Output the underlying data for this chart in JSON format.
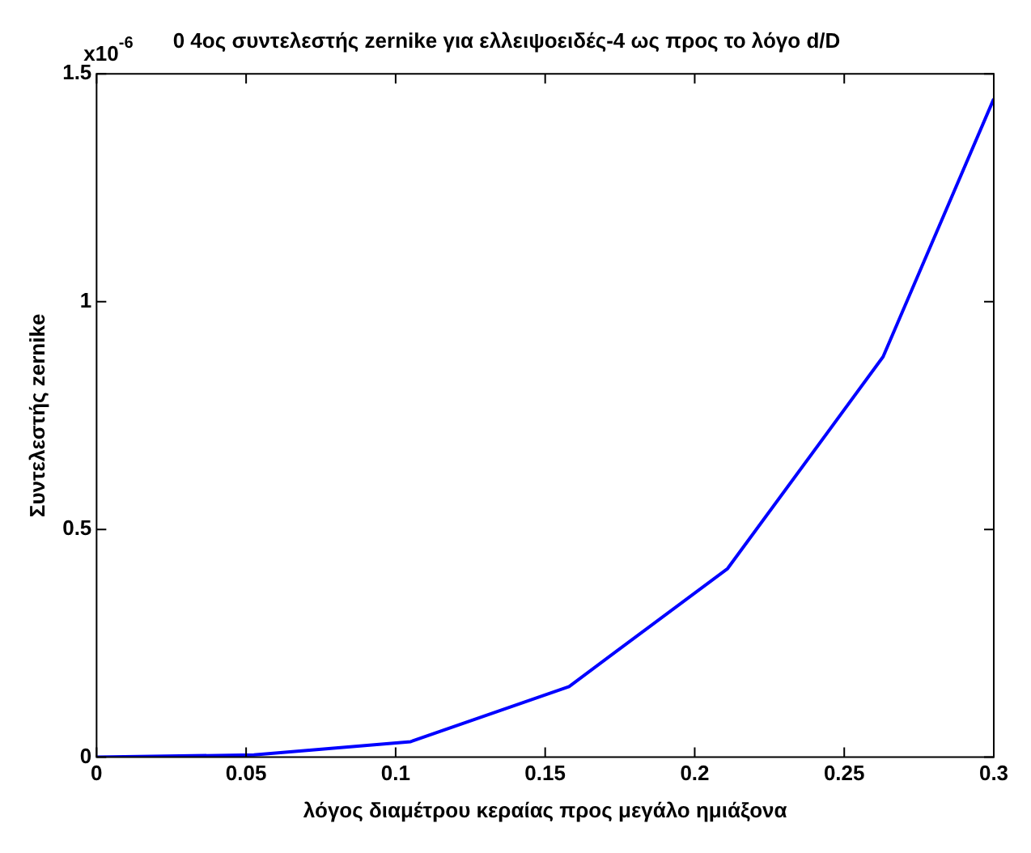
{
  "chart_data": {
    "type": "line",
    "title": "0 4ος συντελεστής zernike για ελλειψοειδές-4 ως προς το λόγο d/D",
    "xlabel": "λόγος διαμέτρου κεραίας προς μεγάλο ημιάξονα",
    "ylabel": "Συντελεστής zernike",
    "annotations": [
      "x10$^{-6}$"
    ],
    "x": [
      0,
      0.0526,
      0.105,
      0.158,
      0.211,
      0.263,
      0.3
    ],
    "series": [
      {
        "color": "#0000ff",
        "values": [
          0,
          0.005,
          0.034,
          0.155,
          0.414,
          0.879,
          1.445
        ]
      }
    ],
    "xlim": [
      0,
      0.3
    ],
    "xticks": [
      0,
      0.05,
      0.1,
      0.15,
      0.2,
      0.25,
      0.3
    ],
    "ylim": [
      0,
      1.5
    ],
    "yticks": [
      0,
      0.5,
      1,
      1.5
    ],
    "grid": false,
    "legend": false,
    "marker": "none",
    "line_style": "solid"
  }
}
